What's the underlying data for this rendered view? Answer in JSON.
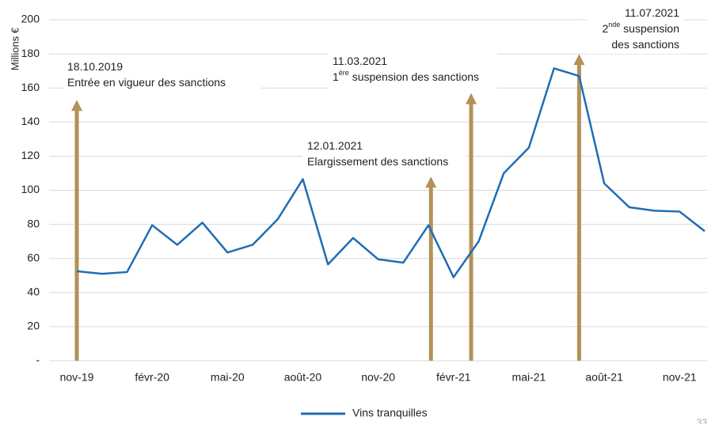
{
  "chart_data": {
    "type": "line",
    "y_label": "Millions €",
    "categories": [
      "nov-19",
      null,
      null,
      "févr-20",
      null,
      null,
      "mai-20",
      null,
      null,
      "août-20",
      null,
      null,
      "nov-20",
      null,
      null,
      "févr-21",
      null,
      null,
      "mai-21",
      null,
      null,
      "août-21",
      null,
      null,
      "nov-21",
      null
    ],
    "series": [
      {
        "name": "Vins tranquilles",
        "color": "#1f6db5",
        "values": [
          52.5,
          51,
          52,
          79.5,
          68,
          81,
          63.5,
          68,
          83,
          106.5,
          56.5,
          72,
          59.5,
          57.5,
          79.5,
          49,
          70,
          110,
          125,
          171.5,
          167,
          104,
          90,
          88,
          87.5,
          76
        ]
      }
    ],
    "ylim": [
      0,
      200
    ],
    "yticks": [
      {
        "value": 0,
        "label": "-"
      },
      20,
      40,
      60,
      80,
      100,
      120,
      140,
      160,
      180,
      200
    ],
    "grid": true,
    "legend": "bottom",
    "annotation_color": "#b39257",
    "annotations": [
      {
        "x": 0,
        "y": 153,
        "lines": [
          [
            "18.10.2019"
          ],
          [
            "Entrée en vigueur des sanctions"
          ]
        ]
      },
      {
        "x": 14.1,
        "y": 108,
        "lines": [
          [
            "12.01.2021"
          ],
          [
            "Elargissement des sanctions"
          ]
        ]
      },
      {
        "x": 15.7,
        "y": 157,
        "lines": [
          [
            "11.03.2021"
          ],
          [
            "1",
            {
              "sup": "ère"
            },
            " suspension des sanctions"
          ]
        ]
      },
      {
        "x": 20,
        "y": 180,
        "lines": [
          [
            "11.07.2021"
          ],
          [
            "2",
            {
              "sup": "nde"
            },
            " suspension"
          ],
          [
            "des sanctions"
          ]
        ]
      }
    ],
    "page_number": "33"
  }
}
